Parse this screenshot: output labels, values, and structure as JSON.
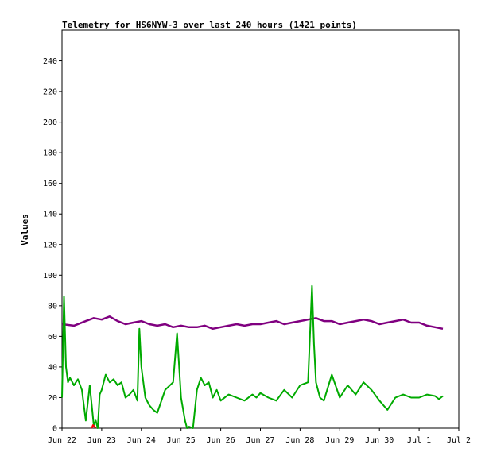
{
  "chart_data": {
    "type": "line",
    "title": "Telemetry for HS6NYW-3 over last 240 hours (1421 points)",
    "xlabel": "",
    "ylabel": "Values",
    "ylim": [
      0,
      260
    ],
    "yticks": [
      0,
      20,
      40,
      60,
      80,
      100,
      120,
      140,
      160,
      180,
      200,
      220,
      240
    ],
    "x_range": [
      "2023-06-22",
      "2023-07-02"
    ],
    "xtick_labels": [
      "Jun 22",
      "Jun 23",
      "Jun 24",
      "Jun 25",
      "Jun 26",
      "Jun 27",
      "Jun 28",
      "Jun 29",
      "Jun 30",
      "Jul 1",
      "Jul 2"
    ],
    "grid": false,
    "legend": "none",
    "x_unit": "day offset from Jun 22 00:00",
    "series": [
      {
        "color": "#800080",
        "x": [
          0.0,
          0.3,
          0.6,
          0.8,
          1.0,
          1.2,
          1.4,
          1.6,
          1.8,
          2.0,
          2.2,
          2.4,
          2.6,
          2.8,
          3.0,
          3.2,
          3.4,
          3.6,
          3.8,
          4.0,
          4.2,
          4.4,
          4.6,
          4.8,
          5.0,
          5.2,
          5.4,
          5.6,
          5.8,
          6.0,
          6.2,
          6.4,
          6.6,
          6.8,
          7.0,
          7.2,
          7.4,
          7.6,
          7.8,
          8.0,
          8.2,
          8.4,
          8.6,
          8.8,
          9.0,
          9.2,
          9.4,
          9.6
        ],
        "y": [
          68,
          67,
          70,
          72,
          71,
          73,
          70,
          68,
          69,
          70,
          68,
          67,
          68,
          66,
          67,
          66,
          66,
          67,
          65,
          66,
          67,
          68,
          67,
          68,
          68,
          69,
          70,
          68,
          69,
          70,
          71,
          72,
          70,
          70,
          68,
          69,
          70,
          71,
          70,
          68,
          69,
          70,
          71,
          69,
          69,
          67,
          66,
          65
        ]
      },
      {
        "color": "#00aa00",
        "x": [
          0.0,
          0.05,
          0.1,
          0.15,
          0.2,
          0.3,
          0.4,
          0.5,
          0.6,
          0.7,
          0.8,
          0.85,
          0.9,
          0.95,
          1.0,
          1.1,
          1.2,
          1.3,
          1.4,
          1.5,
          1.6,
          1.7,
          1.8,
          1.9,
          1.95,
          2.0,
          2.1,
          2.2,
          2.3,
          2.4,
          2.6,
          2.8,
          2.9,
          3.0,
          3.1,
          3.15,
          3.2,
          3.3,
          3.4,
          3.5,
          3.6,
          3.7,
          3.8,
          3.9,
          4.0,
          4.2,
          4.4,
          4.6,
          4.8,
          4.9,
          5.0,
          5.2,
          5.4,
          5.6,
          5.8,
          6.0,
          6.2,
          6.3,
          6.35,
          6.4,
          6.5,
          6.6,
          6.8,
          7.0,
          7.2,
          7.4,
          7.6,
          7.8,
          8.0,
          8.2,
          8.4,
          8.6,
          8.8,
          9.0,
          9.2,
          9.4,
          9.5,
          9.6
        ],
        "y": [
          20,
          86,
          40,
          30,
          33,
          28,
          32,
          25,
          5,
          28,
          2,
          5,
          0,
          22,
          25,
          35,
          30,
          32,
          28,
          30,
          20,
          22,
          25,
          18,
          65,
          40,
          20,
          15,
          12,
          10,
          25,
          30,
          62,
          20,
          5,
          0,
          1,
          0,
          25,
          33,
          28,
          30,
          20,
          25,
          18,
          22,
          20,
          18,
          22,
          20,
          23,
          20,
          18,
          25,
          20,
          28,
          30,
          93,
          55,
          30,
          20,
          18,
          35,
          20,
          28,
          22,
          30,
          25,
          18,
          12,
          20,
          22,
          20,
          20,
          22,
          21,
          19,
          21
        ]
      },
      {
        "color": "#ff0000",
        "x": [
          0.75,
          0.78,
          0.82,
          0.85
        ],
        "y": [
          0,
          2,
          1,
          0
        ]
      }
    ]
  }
}
